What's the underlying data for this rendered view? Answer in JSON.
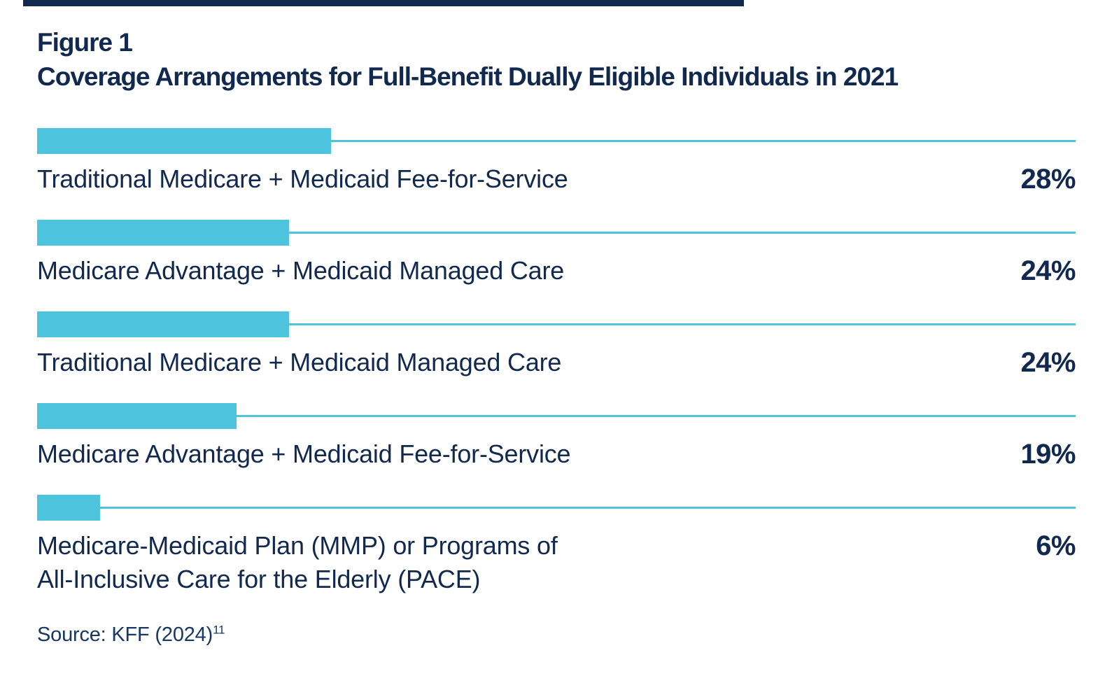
{
  "figure_label": "Figure 1",
  "title": "Coverage Arrangements for Full-Benefit Dually Eligible Individuals in 2021",
  "source": {
    "text": "Source: KFF (2024)",
    "superscript": "11"
  },
  "colors": {
    "navy": "#12294F",
    "cyan": "#4DC3DE"
  },
  "chart_data": {
    "type": "bar",
    "orientation": "horizontal",
    "title": "Coverage Arrangements for Full-Benefit Dually Eligible Individuals in 2021",
    "figure_label": "Figure 1",
    "unit": "%",
    "xlim": [
      0,
      100
    ],
    "grid": false,
    "legend": false,
    "bar_color": "#4DC3DE",
    "value_label_position": "right-aligned",
    "categories": [
      "Traditional Medicare + Medicaid Fee-for-Service",
      "Medicare Advantage + Medicaid Managed Care",
      "Traditional Medicare + Medicaid Managed Care",
      "Medicare Advantage + Medicaid Fee-for-Service",
      "Medicare-Medicaid Plan (MMP) or Programs of\nAll-Inclusive Care for the Elderly (PACE)"
    ],
    "values": [
      28,
      24,
      24,
      19,
      6
    ],
    "value_labels": [
      "28%",
      "24%",
      "24%",
      "19%",
      "6%"
    ],
    "source_note": "Source: KFF (2024)11"
  }
}
